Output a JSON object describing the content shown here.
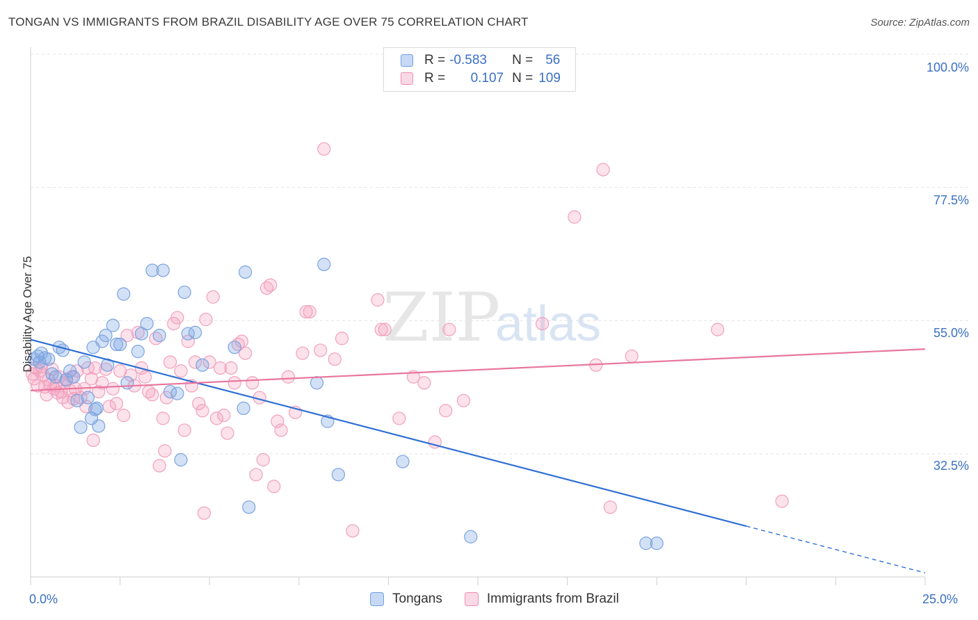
{
  "title": "TONGAN VS IMMIGRANTS FROM BRAZIL DISABILITY AGE OVER 75 CORRELATION CHART",
  "source": "Source: ZipAtlas.com",
  "watermark": {
    "zip": "ZIP",
    "atlas": "atlas"
  },
  "legend_top": [
    {
      "r_label": "R =",
      "r_value": "-0.583",
      "n_label": "N =",
      "n_value": "56",
      "color": "#6f9fe0"
    },
    {
      "r_label": "R =",
      "r_value": "0.107",
      "n_label": "N =",
      "n_value": "109",
      "color": "#f08cb0"
    }
  ],
  "colors": {
    "tongans_fill": "rgba(130,170,230,0.35)",
    "tongans_stroke": "#7aa3df",
    "tongans_line": "#2e6fd4",
    "brazil_fill": "rgba(245,160,190,0.30)",
    "brazil_stroke": "#f0a0bd",
    "brazil_line": "#e8769e",
    "axis_text": "#3a6fc4"
  },
  "chart_data": {
    "type": "scatter",
    "title": "TONGAN VS IMMIGRANTS FROM BRAZIL DISABILITY AGE OVER 75 CORRELATION CHART",
    "xlabel": "",
    "ylabel": "Disability Age Over 75",
    "xlim": [
      0,
      25
    ],
    "ylim": [
      18,
      102
    ],
    "x_tick_labels": [
      "0.0%",
      "25.0%"
    ],
    "y_tick_labels": [
      "100.0%",
      "77.5%",
      "55.0%",
      "32.5%"
    ],
    "y_ticks": [
      100,
      77.5,
      55,
      32.5
    ],
    "grid": true,
    "legend_position": "bottom",
    "series": [
      {
        "name": "Tongans",
        "R": -0.583,
        "N": 56,
        "trend": {
          "x0": 0,
          "y0": 51.8,
          "x1": 20,
          "y1": 20.3,
          "dashed_to_x": 25,
          "dashed_to_y": 12.4
        },
        "points": [
          [
            0.1,
            48.5
          ],
          [
            0.2,
            49
          ],
          [
            0.25,
            48
          ],
          [
            0.3,
            49.5
          ],
          [
            0.4,
            48.7
          ],
          [
            0.5,
            48.5
          ],
          [
            0.6,
            46
          ],
          [
            0.7,
            45.5
          ],
          [
            0.8,
            50.5
          ],
          [
            0.9,
            50
          ],
          [
            1.0,
            45
          ],
          [
            1.1,
            46.5
          ],
          [
            1.2,
            45.5
          ],
          [
            1.3,
            41.5
          ],
          [
            1.4,
            37
          ],
          [
            1.5,
            48
          ],
          [
            1.6,
            42
          ],
          [
            1.7,
            38.5
          ],
          [
            1.75,
            50.5
          ],
          [
            1.8,
            40
          ],
          [
            1.85,
            40.2
          ],
          [
            1.9,
            37.2
          ],
          [
            2.0,
            51.5
          ],
          [
            2.1,
            52.5
          ],
          [
            2.15,
            47.5
          ],
          [
            2.3,
            54.2
          ],
          [
            2.4,
            51
          ],
          [
            2.5,
            51
          ],
          [
            2.6,
            59.5
          ],
          [
            2.7,
            44.5
          ],
          [
            3.0,
            49.8
          ],
          [
            3.1,
            52.8
          ],
          [
            3.25,
            54.5
          ],
          [
            3.4,
            63.5
          ],
          [
            3.6,
            52.5
          ],
          [
            3.7,
            63.5
          ],
          [
            3.9,
            43
          ],
          [
            4.1,
            42.7
          ],
          [
            4.2,
            31.5
          ],
          [
            4.3,
            59.8
          ],
          [
            4.4,
            52.8
          ],
          [
            4.6,
            53
          ],
          [
            4.8,
            47.5
          ],
          [
            5.7,
            50.5
          ],
          [
            5.95,
            40.2
          ],
          [
            6.0,
            63.2
          ],
          [
            6.1,
            23.5
          ],
          [
            8.0,
            44.5
          ],
          [
            8.2,
            64.5
          ],
          [
            8.3,
            38
          ],
          [
            8.6,
            29
          ],
          [
            10.4,
            31.2
          ],
          [
            12.3,
            18.5
          ],
          [
            17.2,
            17.4
          ],
          [
            17.5,
            17.4
          ]
        ]
      },
      {
        "name": "Immigrants from Brazil",
        "R": 0.107,
        "N": 109,
        "trend": {
          "x0": 0,
          "y0": 43.2,
          "x1": 25,
          "y1": 50.2
        },
        "points": [
          [
            0.05,
            46
          ],
          [
            0.1,
            45.2
          ],
          [
            0.15,
            47
          ],
          [
            0.2,
            44
          ],
          [
            0.25,
            46.5
          ],
          [
            0.3,
            47.2
          ],
          [
            0.35,
            45.8
          ],
          [
            0.4,
            43.8
          ],
          [
            0.45,
            42.5
          ],
          [
            0.5,
            45
          ],
          [
            0.55,
            44.2
          ],
          [
            0.6,
            46.8
          ],
          [
            0.65,
            43.5
          ],
          [
            0.7,
            44
          ],
          [
            0.75,
            42.8
          ],
          [
            0.8,
            45.5
          ],
          [
            0.85,
            43
          ],
          [
            0.9,
            42
          ],
          [
            0.95,
            44.5
          ],
          [
            1.0,
            45.1
          ],
          [
            1.05,
            41.2
          ],
          [
            1.1,
            43.2
          ],
          [
            1.15,
            45.5
          ],
          [
            1.2,
            41.8
          ],
          [
            1.25,
            43.5
          ],
          [
            1.3,
            46.5
          ],
          [
            1.4,
            42
          ],
          [
            1.5,
            43.5
          ],
          [
            1.55,
            40.5
          ],
          [
            1.6,
            47
          ],
          [
            1.7,
            45.2
          ],
          [
            1.75,
            34.8
          ],
          [
            1.8,
            47
          ],
          [
            1.9,
            43
          ],
          [
            2.0,
            44.5
          ],
          [
            2.1,
            46.8
          ],
          [
            2.2,
            40.5
          ],
          [
            2.3,
            43.5
          ],
          [
            2.4,
            41
          ],
          [
            2.5,
            46.5
          ],
          [
            2.6,
            39
          ],
          [
            2.7,
            52.5
          ],
          [
            2.8,
            45.8
          ],
          [
            2.9,
            44
          ],
          [
            3.0,
            53
          ],
          [
            3.1,
            47
          ],
          [
            3.2,
            45.5
          ],
          [
            3.3,
            43
          ],
          [
            3.4,
            42.5
          ],
          [
            3.5,
            52
          ],
          [
            3.6,
            30.5
          ],
          [
            3.7,
            38.5
          ],
          [
            3.75,
            33
          ],
          [
            3.8,
            42
          ],
          [
            3.9,
            48
          ],
          [
            4.0,
            54.5
          ],
          [
            4.1,
            55.5
          ],
          [
            4.2,
            46.5
          ],
          [
            4.3,
            36.5
          ],
          [
            4.4,
            51.5
          ],
          [
            4.5,
            44
          ],
          [
            4.6,
            48
          ],
          [
            4.7,
            41
          ],
          [
            4.8,
            39.8
          ],
          [
            4.85,
            22.5
          ],
          [
            4.9,
            55.2
          ],
          [
            5.0,
            48
          ],
          [
            5.1,
            59
          ],
          [
            5.2,
            38.5
          ],
          [
            5.3,
            47
          ],
          [
            5.4,
            39
          ],
          [
            5.5,
            36
          ],
          [
            5.6,
            47
          ],
          [
            5.7,
            44.5
          ],
          [
            5.8,
            51
          ],
          [
            5.9,
            51.5
          ],
          [
            6.0,
            49.5
          ],
          [
            6.2,
            44.5
          ],
          [
            6.3,
            29
          ],
          [
            6.4,
            42
          ],
          [
            6.5,
            31.5
          ],
          [
            6.6,
            60.5
          ],
          [
            6.7,
            61
          ],
          [
            6.8,
            27
          ],
          [
            6.9,
            38
          ],
          [
            7.0,
            36.5
          ],
          [
            7.2,
            45.5
          ],
          [
            7.4,
            39.5
          ],
          [
            7.6,
            49.5
          ],
          [
            7.7,
            56.5
          ],
          [
            7.8,
            56.5
          ],
          [
            8.1,
            50
          ],
          [
            8.2,
            84
          ],
          [
            8.5,
            48.5
          ],
          [
            8.7,
            52
          ],
          [
            9.0,
            19.5
          ],
          [
            9.7,
            58.5
          ],
          [
            9.8,
            53.5
          ],
          [
            9.9,
            53.5
          ],
          [
            10.3,
            38.5
          ],
          [
            10.7,
            45.5
          ],
          [
            11.0,
            44.5
          ],
          [
            11.3,
            34.5
          ],
          [
            11.6,
            39.8
          ],
          [
            11.7,
            53.5
          ],
          [
            12.1,
            41.5
          ],
          [
            14.3,
            54.5
          ],
          [
            15.2,
            72.5
          ],
          [
            15.8,
            47.5
          ],
          [
            16.0,
            80.5
          ],
          [
            16.2,
            23.5
          ],
          [
            16.8,
            49
          ],
          [
            19.2,
            53.5
          ],
          [
            21.0,
            24.5
          ]
        ]
      }
    ]
  },
  "bottom_legend": [
    {
      "label": "Tongans"
    },
    {
      "label": "Immigrants from Brazil"
    }
  ]
}
